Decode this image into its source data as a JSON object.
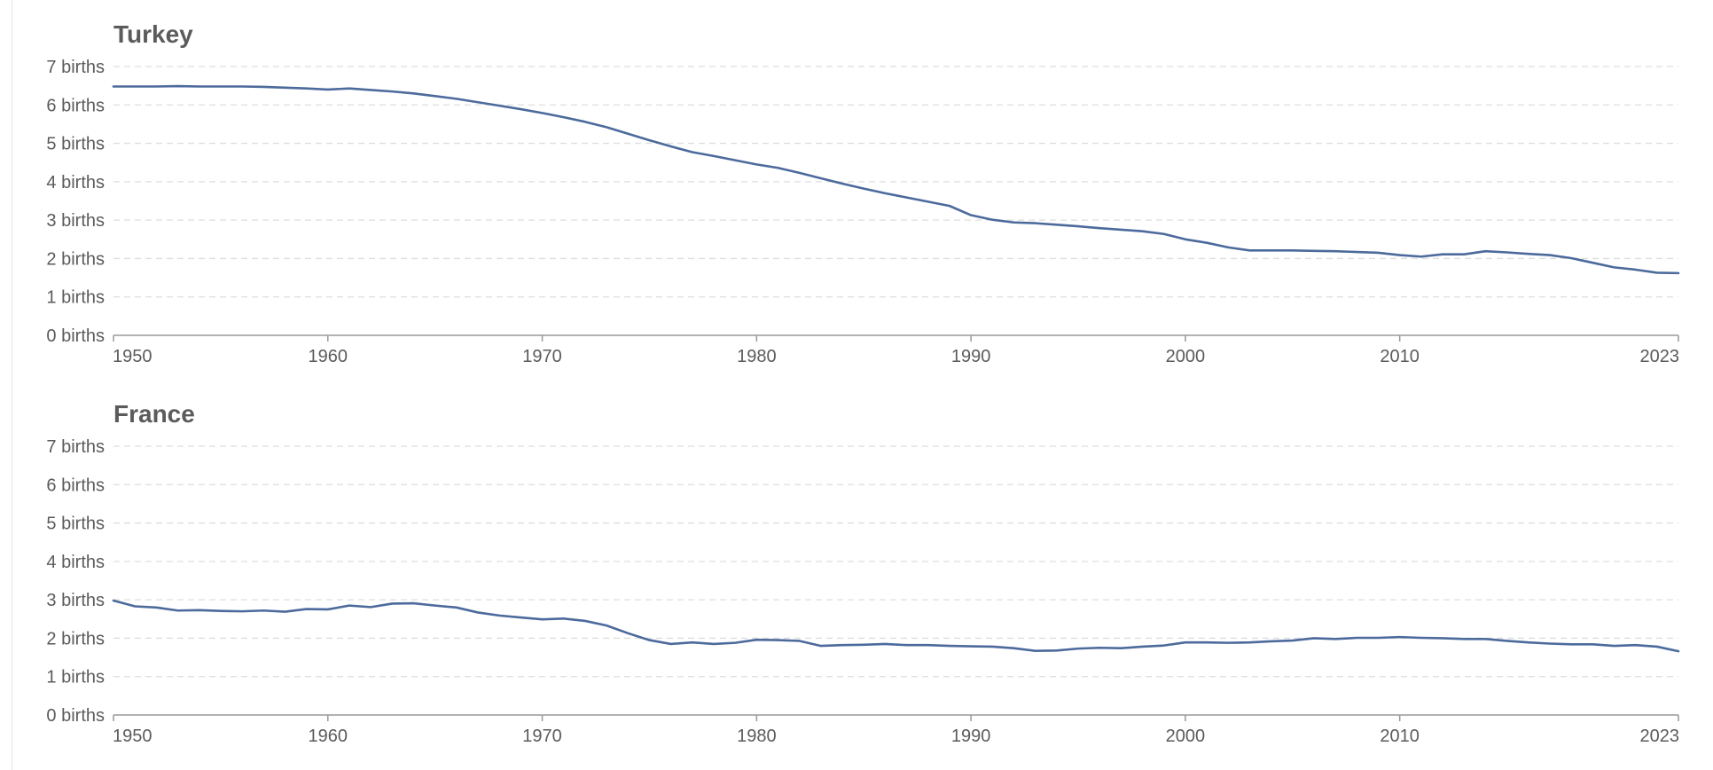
{
  "colors": {
    "series": "#4c6a9c",
    "text": "#5b5b5b",
    "grid": "#dddddd",
    "axis": "#999999"
  },
  "chart_data": [
    {
      "type": "line",
      "title": "Turkey",
      "xlim": [
        1950,
        2023
      ],
      "ylim": [
        0,
        7
      ],
      "y_unit": "births",
      "grid": "horizontal-dashed",
      "x_ticks": [
        "1950",
        "1960",
        "1970",
        "1980",
        "1990",
        "2000",
        "2010",
        "2023"
      ],
      "y_ticks": [
        "0 births",
        "1 births",
        "2 births",
        "3 births",
        "4 births",
        "5 births",
        "6 births",
        "7 births"
      ],
      "series": [
        {
          "x": [
            1950,
            1951,
            1952,
            1953,
            1954,
            1955,
            1956,
            1957,
            1958,
            1959,
            1960,
            1961,
            1962,
            1963,
            1964,
            1965,
            1966,
            1967,
            1968,
            1969,
            1970,
            1971,
            1972,
            1973,
            1974,
            1975,
            1976,
            1977,
            1978,
            1979,
            1980,
            1981,
            1982,
            1983,
            1984,
            1985,
            1986,
            1987,
            1988,
            1989,
            1990,
            1991,
            1992,
            1993,
            1994,
            1995,
            1996,
            1997,
            1998,
            1999,
            2000,
            2001,
            2002,
            2003,
            2004,
            2005,
            2006,
            2007,
            2008,
            2009,
            2010,
            2011,
            2012,
            2013,
            2014,
            2015,
            2016,
            2017,
            2018,
            2019,
            2020,
            2021,
            2022,
            2023
          ],
          "values": [
            6.48,
            6.48,
            6.48,
            6.49,
            6.48,
            6.48,
            6.48,
            6.47,
            6.45,
            6.43,
            6.4,
            6.43,
            6.39,
            6.35,
            6.3,
            6.23,
            6.16,
            6.07,
            5.98,
            5.89,
            5.79,
            5.68,
            5.56,
            5.42,
            5.25,
            5.08,
            4.92,
            4.77,
            4.67,
            4.56,
            4.45,
            4.36,
            4.23,
            4.09,
            3.95,
            3.82,
            3.7,
            3.59,
            3.48,
            3.37,
            3.13,
            3.01,
            2.94,
            2.92,
            2.88,
            2.84,
            2.79,
            2.75,
            2.71,
            2.64,
            2.5,
            2.41,
            2.29,
            2.21,
            2.21,
            2.21,
            2.2,
            2.19,
            2.17,
            2.15,
            2.09,
            2.05,
            2.11,
            2.11,
            2.19,
            2.16,
            2.12,
            2.09,
            2.01,
            1.89,
            1.77,
            1.71,
            1.63,
            1.62
          ]
        }
      ]
    },
    {
      "type": "line",
      "title": "France",
      "xlim": [
        1950,
        2023
      ],
      "ylim": [
        0,
        7
      ],
      "y_unit": "births",
      "grid": "horizontal-dashed",
      "x_ticks": [
        "1950",
        "1960",
        "1970",
        "1980",
        "1990",
        "2000",
        "2010",
        "2023"
      ],
      "y_ticks": [
        "0 births",
        "1 births",
        "2 births",
        "3 births",
        "4 births",
        "5 births",
        "6 births",
        "7 births"
      ],
      "series": [
        {
          "x": [
            1950,
            1951,
            1952,
            1953,
            1954,
            1955,
            1956,
            1957,
            1958,
            1959,
            1960,
            1961,
            1962,
            1963,
            1964,
            1965,
            1966,
            1967,
            1968,
            1969,
            1970,
            1971,
            1972,
            1973,
            1974,
            1975,
            1976,
            1977,
            1978,
            1979,
            1980,
            1981,
            1982,
            1983,
            1984,
            1985,
            1986,
            1987,
            1988,
            1989,
            1990,
            1991,
            1992,
            1993,
            1994,
            1995,
            1996,
            1997,
            1998,
            1999,
            2000,
            2001,
            2002,
            2003,
            2004,
            2005,
            2006,
            2007,
            2008,
            2009,
            2010,
            2011,
            2012,
            2013,
            2014,
            2015,
            2016,
            2017,
            2018,
            2019,
            2020,
            2021,
            2022,
            2023
          ],
          "values": [
            2.98,
            2.83,
            2.8,
            2.72,
            2.73,
            2.71,
            2.7,
            2.72,
            2.69,
            2.76,
            2.75,
            2.85,
            2.81,
            2.9,
            2.91,
            2.85,
            2.8,
            2.67,
            2.59,
            2.54,
            2.49,
            2.51,
            2.45,
            2.33,
            2.13,
            1.95,
            1.85,
            1.89,
            1.85,
            1.88,
            1.96,
            1.95,
            1.93,
            1.8,
            1.82,
            1.83,
            1.85,
            1.82,
            1.82,
            1.8,
            1.79,
            1.78,
            1.74,
            1.67,
            1.68,
            1.73,
            1.75,
            1.74,
            1.78,
            1.81,
            1.89,
            1.89,
            1.88,
            1.89,
            1.92,
            1.94,
            2.0,
            1.98,
            2.01,
            2.01,
            2.03,
            2.01,
            2.0,
            1.98,
            1.98,
            1.93,
            1.89,
            1.86,
            1.84,
            1.84,
            1.8,
            1.82,
            1.78,
            1.66
          ]
        }
      ]
    }
  ]
}
